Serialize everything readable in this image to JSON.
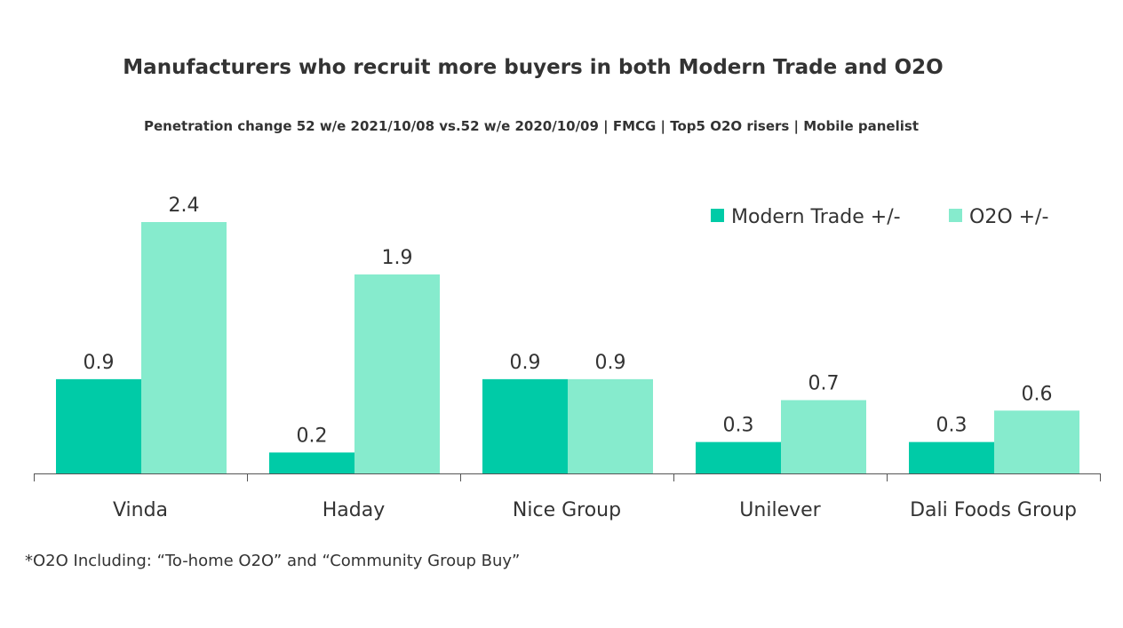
{
  "chart_data": {
    "type": "bar",
    "title": "Manufacturers who recruit more buyers in both Modern Trade and O2O",
    "subtitle": "Penetration change 52 w/e 2021/10/08 vs.52 w/e 2020/10/09 | FMCG | Top5 O2O risers | Mobile panelist",
    "categories": [
      "Vinda",
      "Haday",
      "Nice Group",
      "Unilever",
      "Dali Foods Group"
    ],
    "series": [
      {
        "name": "Modern Trade +/-",
        "values": [
          0.9,
          0.2,
          0.9,
          0.3,
          0.3
        ],
        "color": "#00CBA7"
      },
      {
        "name": "O2O +/-",
        "values": [
          2.4,
          1.9,
          0.9,
          0.7,
          0.6
        ],
        "color": "#86EBCD"
      }
    ],
    "ylim": [
      0,
      2.4
    ],
    "grid": false,
    "legend": "top-right",
    "footnote": "*O2O Including: “To-home O2O” and “Community Group Buy”"
  }
}
